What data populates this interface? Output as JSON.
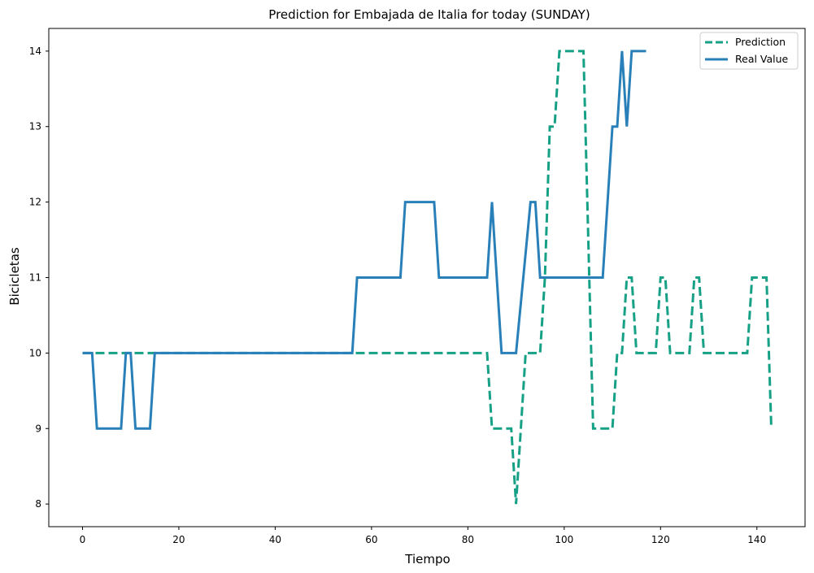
{
  "chart_data": {
    "type": "line",
    "title": "Prediction for Embajada de Italia for today (SUNDAY)",
    "xlabel": "Tiempo",
    "ylabel": "Bicicletas",
    "xlim": [
      -7,
      150
    ],
    "ylim": [
      7.7,
      14.3
    ],
    "xticks": [
      0,
      20,
      40,
      60,
      80,
      100,
      120,
      140
    ],
    "yticks": [
      8,
      9,
      10,
      11,
      12,
      13,
      14
    ],
    "grid": false,
    "legend_position": "top-right",
    "series": [
      {
        "name": "Prediction",
        "color": "#16a085",
        "style": "dashed",
        "x": [
          0,
          84,
          85,
          89,
          90,
          91,
          92,
          95,
          96,
          97,
          98,
          99,
          104,
          106,
          110,
          111,
          112,
          113,
          114,
          115,
          119,
          120,
          121,
          122,
          126,
          127,
          128,
          129,
          137,
          138,
          139,
          142,
          143
        ],
        "y": [
          10,
          10,
          9,
          9,
          8,
          9,
          10,
          10,
          11,
          13,
          13,
          14,
          14,
          9,
          9,
          10,
          10,
          11,
          11,
          10,
          10,
          11,
          11,
          10,
          10,
          11,
          11,
          10,
          10,
          10,
          11,
          11,
          9
        ]
      },
      {
        "name": "Real Value",
        "color": "#2980b9",
        "style": "solid",
        "x": [
          0,
          2,
          3,
          8,
          9,
          10,
          11,
          14,
          15,
          56,
          57,
          66,
          67,
          73,
          74,
          84,
          85,
          87,
          90,
          93,
          94,
          95,
          108,
          110,
          111,
          112,
          113,
          114,
          117
        ],
        "y": [
          10,
          10,
          9,
          9,
          10,
          10,
          9,
          9,
          10,
          10,
          11,
          11,
          12,
          12,
          11,
          11,
          12,
          10,
          10,
          12,
          12,
          11,
          11,
          13,
          13,
          14,
          13,
          14,
          14
        ]
      }
    ]
  }
}
